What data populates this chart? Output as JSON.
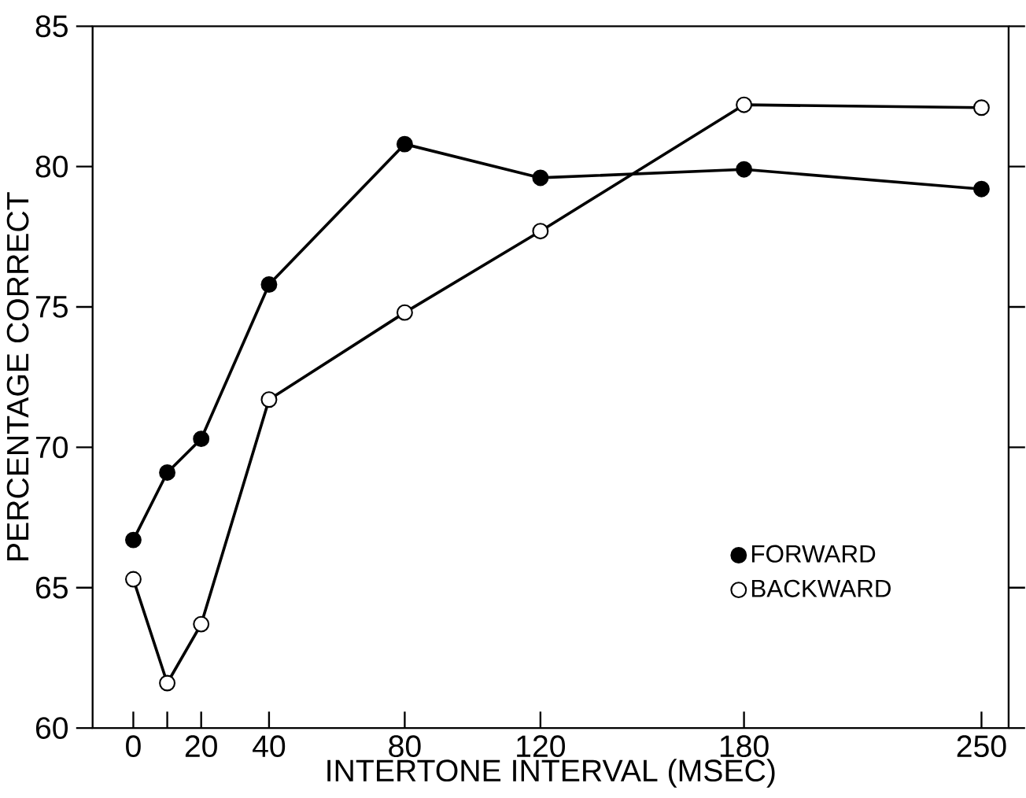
{
  "chart_data": {
    "type": "line",
    "xlabel": "INTERTONE INTERVAL (MSEC)",
    "ylabel": "PERCENTAGE CORRECT",
    "x": [
      0,
      10,
      20,
      40,
      80,
      120,
      180,
      250
    ],
    "series": [
      {
        "name": "FORWARD",
        "color": "#000000",
        "values": [
          66.7,
          69.1,
          70.3,
          75.8,
          80.8,
          79.6,
          79.9,
          79.2
        ]
      },
      {
        "name": "BACKWARD",
        "color": "#ffffff",
        "values": [
          65.3,
          61.6,
          63.7,
          71.7,
          74.8,
          77.7,
          82.2,
          82.1
        ]
      }
    ],
    "xlim": [
      -12,
      258
    ],
    "ylim": [
      60,
      85
    ],
    "xticks": [
      0,
      {
        "value": 10,
        "label": null
      },
      20,
      40,
      80,
      120,
      180,
      250
    ],
    "yticks": [
      60,
      65,
      70,
      75,
      80,
      85
    ],
    "marker": "circle",
    "line_style": "solid",
    "legend": "bottom right",
    "grid": false
  }
}
